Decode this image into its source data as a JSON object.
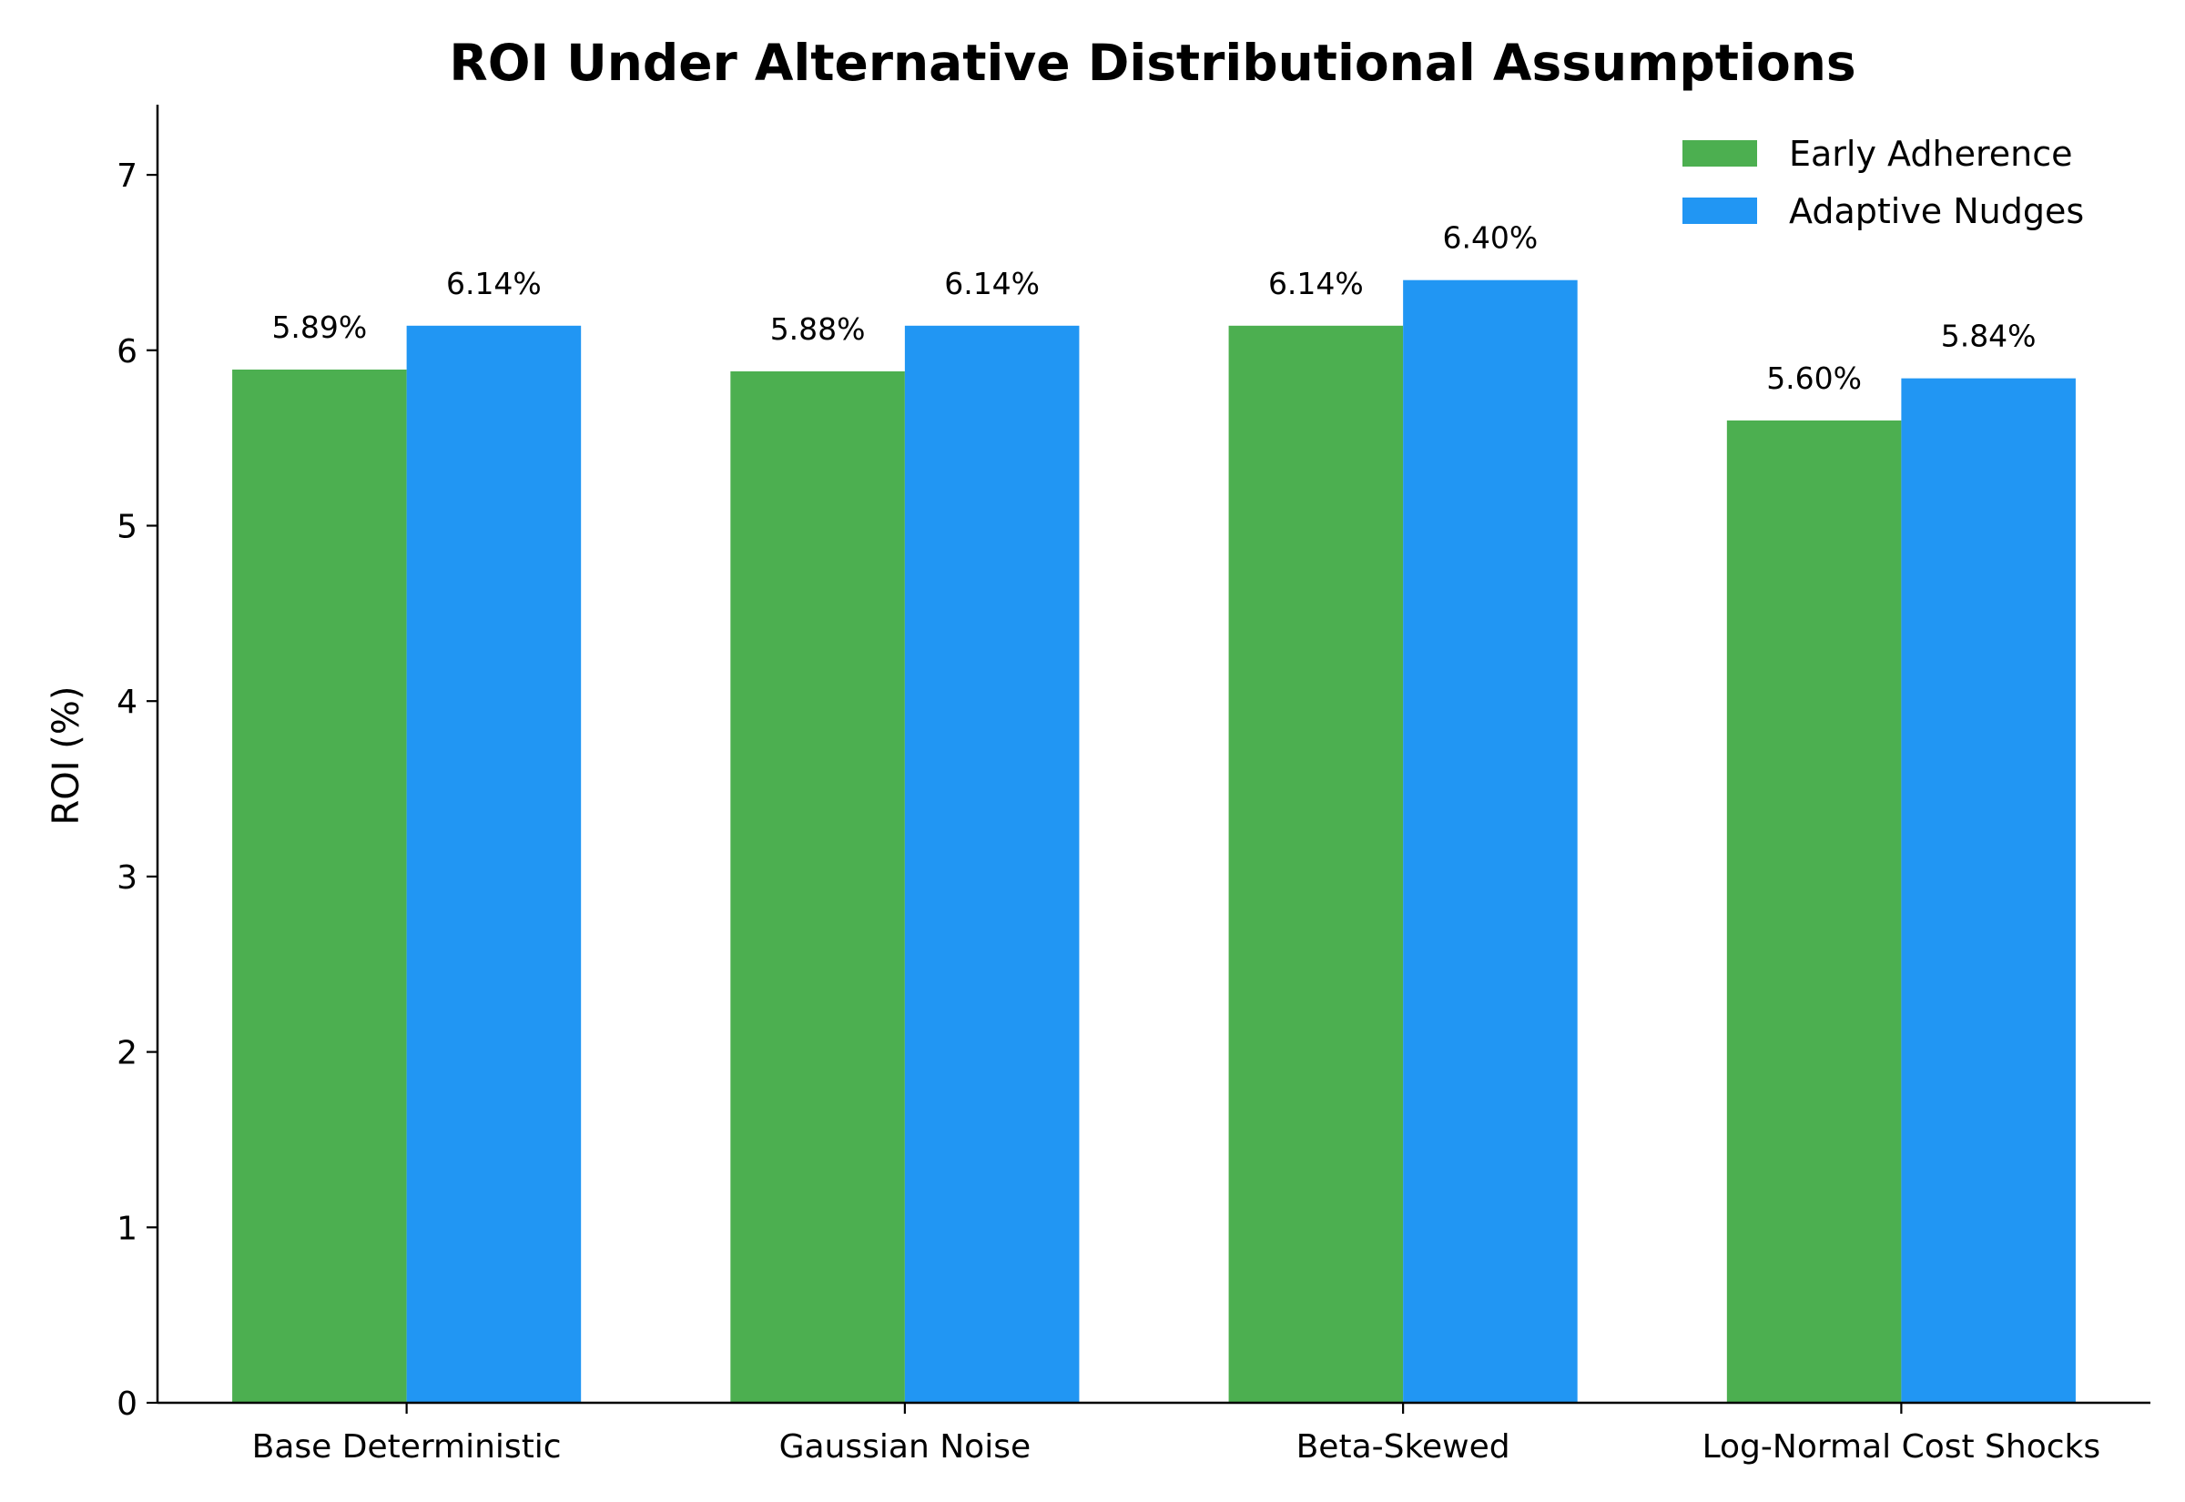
{
  "chart_data": {
    "type": "bar",
    "title": "ROI Under Alternative Distributional Assumptions",
    "xlabel": "",
    "ylabel": "ROI (%)",
    "categories": [
      "Base Deterministic",
      "Gaussian Noise",
      "Beta-Skewed",
      "Log-Normal Cost Shocks"
    ],
    "series": [
      {
        "name": "Early Adherence",
        "color": "#4caf50",
        "values": [
          5.89,
          5.88,
          6.14,
          5.6
        ],
        "labels": [
          "5.89%",
          "5.88%",
          "6.14%",
          "5.60%"
        ]
      },
      {
        "name": "Adaptive Nudges",
        "color": "#2196f3",
        "values": [
          6.14,
          6.14,
          6.4,
          5.84
        ],
        "labels": [
          "6.14%",
          "6.14%",
          "6.40%",
          "5.84%"
        ]
      }
    ],
    "ylim": [
      0,
      7.4
    ],
    "yticks": [
      "0",
      "1",
      "2",
      "3",
      "4",
      "5",
      "6",
      "7"
    ],
    "grid": false,
    "legend_position": "top-right"
  }
}
